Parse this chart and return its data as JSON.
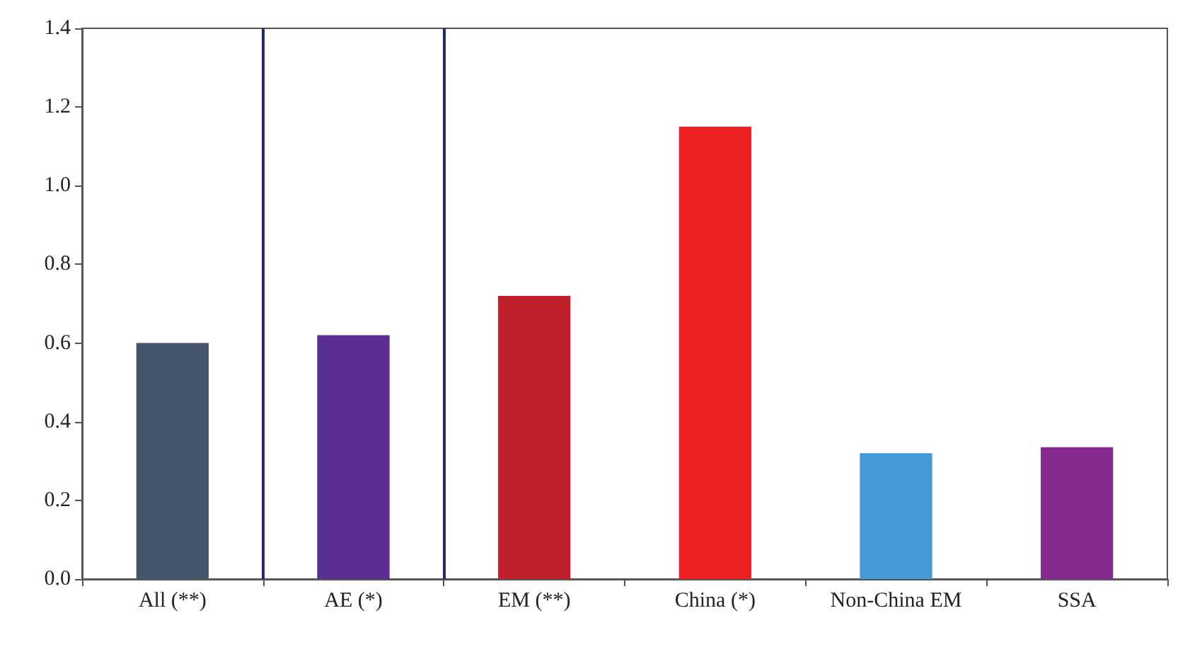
{
  "chart_data": {
    "type": "bar",
    "categories": [
      "All (**)",
      "AE (*)",
      "EM (**)",
      "China (*)",
      "Non-China EM",
      "SSA"
    ],
    "values": [
      0.6,
      0.62,
      0.72,
      1.15,
      0.32,
      0.335
    ],
    "colors": [
      "#44546a",
      "#5b2f91",
      "#c0202a",
      "#ee2024",
      "#4499d6",
      "#862a8f"
    ],
    "ylim": [
      0,
      1.4
    ],
    "yticks": [
      {
        "value": 0,
        "label": "0.0"
      },
      {
        "value": 0.2,
        "label": "0.2"
      },
      {
        "value": 0.4,
        "label": "0.4"
      },
      {
        "value": 0.6,
        "label": "0.6"
      },
      {
        "value": 0.8,
        "label": "0.8"
      },
      {
        "value": 1,
        "label": "1.0"
      },
      {
        "value": 1.2,
        "label": "1.2"
      },
      {
        "value": 1.4,
        "label": "1.4"
      }
    ],
    "grid": false
  }
}
